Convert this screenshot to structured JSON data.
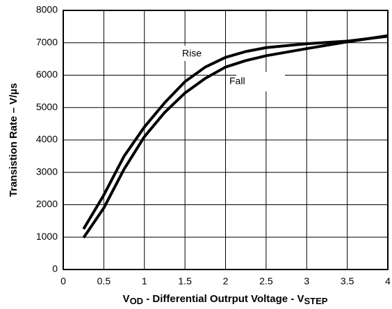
{
  "chart_data": {
    "type": "line",
    "ylabel": "Transistion Rate – V/µs",
    "xlabel_parts": [
      "V",
      "OD",
      " - Differential Outrput Voltage - V",
      "STEP"
    ],
    "x": [
      0.25,
      0.5,
      0.75,
      1,
      1.25,
      1.5,
      1.75,
      2,
      2.25,
      2.5,
      3,
      3.5,
      4
    ],
    "series": [
      {
        "name": "Rise",
        "color": "#000000",
        "values": [
          1250,
          2300,
          3500,
          4400,
          5150,
          5800,
          6250,
          6550,
          6730,
          6850,
          6970,
          7050,
          7200
        ]
      },
      {
        "name": "Fall",
        "color": "#000000",
        "values": [
          980,
          1900,
          3100,
          4100,
          4850,
          5450,
          5900,
          6250,
          6450,
          6600,
          6820,
          7030,
          7220
        ]
      }
    ],
    "xlim": [
      0,
      4
    ],
    "xticks": [
      0,
      0.5,
      1,
      1.5,
      2,
      2.5,
      3,
      3.5,
      4
    ],
    "ylim": [
      0,
      8000
    ],
    "yticks": [
      0,
      1000,
      2000,
      3000,
      4000,
      5000,
      6000,
      7000,
      8000
    ],
    "grid": true
  }
}
